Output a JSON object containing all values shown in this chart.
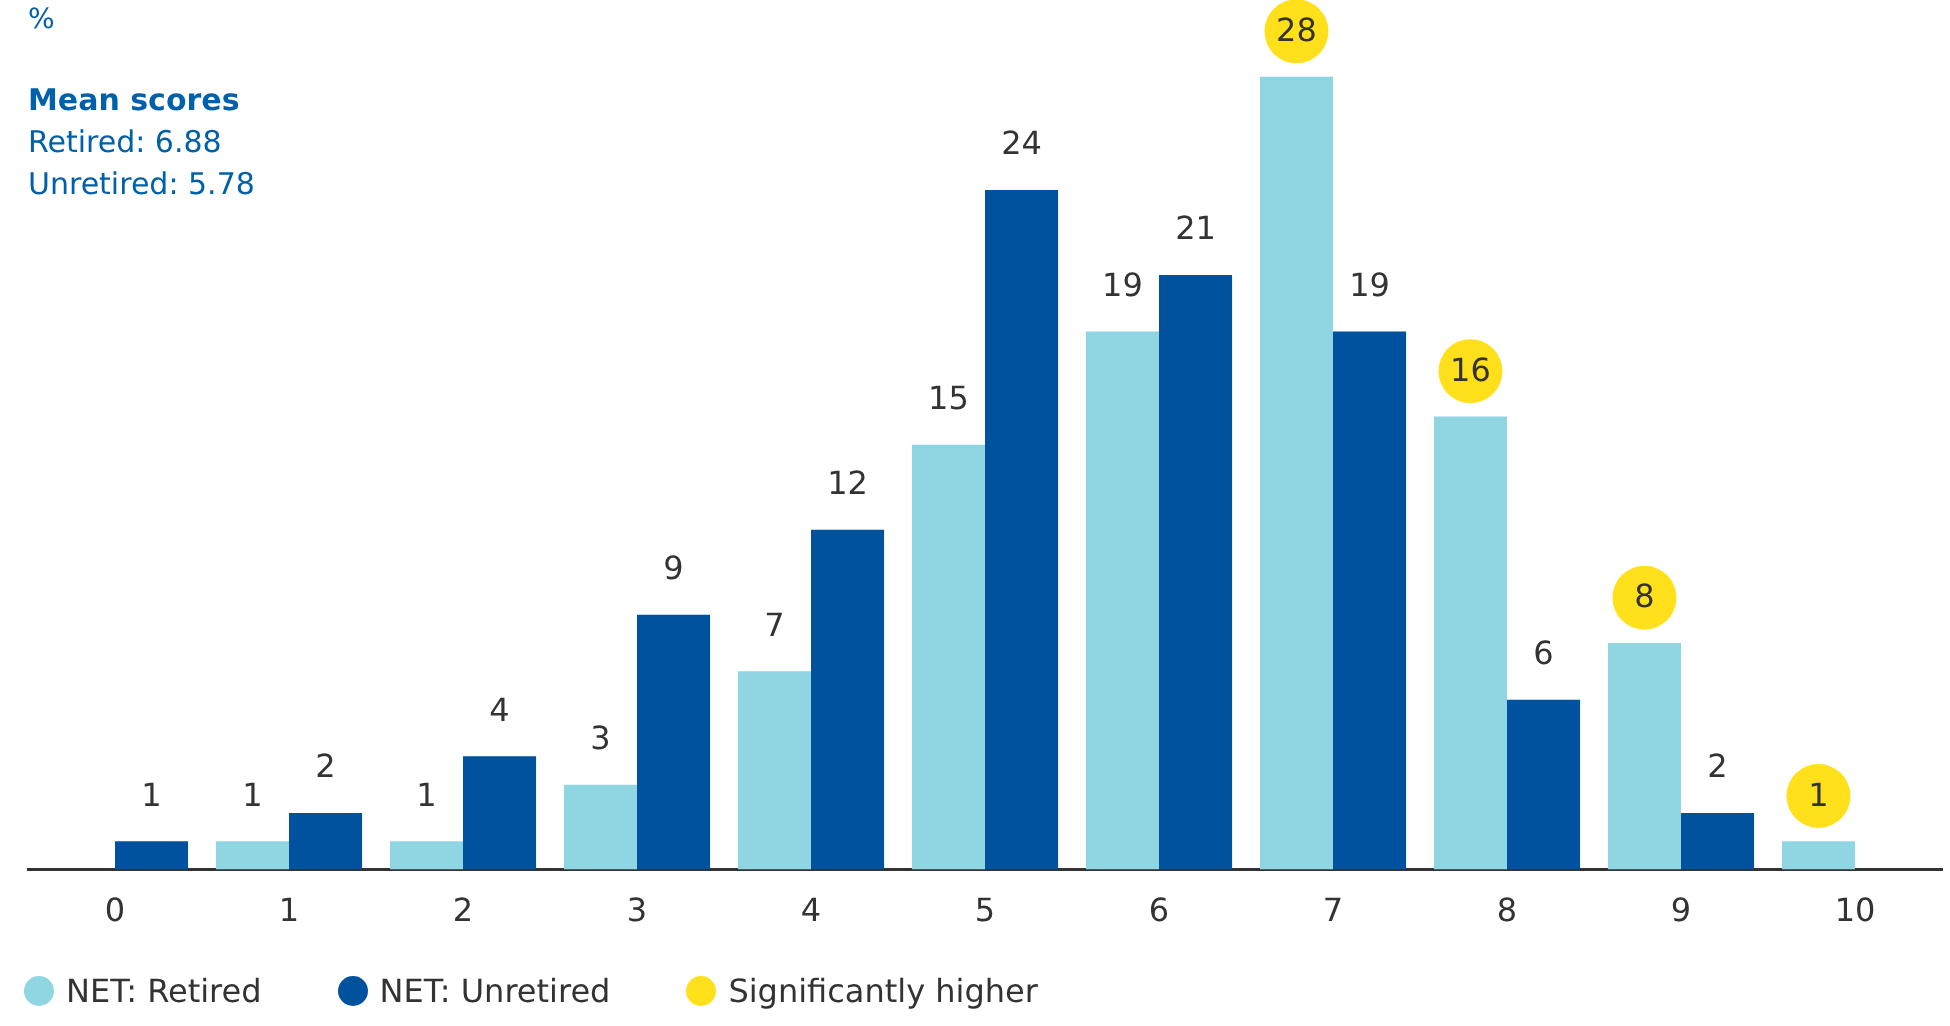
{
  "chart_data": {
    "type": "bar",
    "ylabel": "%",
    "categories": [
      "0",
      "1",
      "2",
      "3",
      "4",
      "5",
      "6",
      "7",
      "8",
      "9",
      "10"
    ],
    "series": [
      {
        "name": "NET: Retired",
        "color": "#8fd6e2",
        "values": [
          null,
          1,
          1,
          3,
          7,
          15,
          19,
          28,
          16,
          8,
          1
        ]
      },
      {
        "name": "NET: Unretired",
        "color": "#00529f",
        "values": [
          1,
          2,
          4,
          9,
          12,
          24,
          21,
          19,
          6,
          2,
          null
        ]
      },
      {
        "name": "Significantly higher",
        "type": "scatter",
        "color": "#ffe01a",
        "x": [
          "7",
          "8",
          "9",
          "10"
        ],
        "values": [
          29.6,
          17.6,
          9.6,
          2.6
        ],
        "value_labels": [
          null,
          null,
          null,
          null
        ]
      }
    ],
    "annotations": [
      "Mean scores",
      "Retired: 6.88",
      "Unretired: 5.78"
    ],
    "data_labels": true,
    "grid": false,
    "legend": "bottom left"
  }
}
